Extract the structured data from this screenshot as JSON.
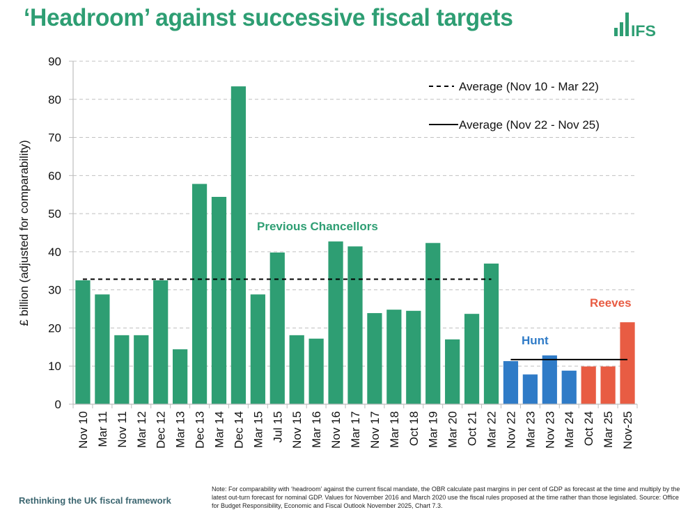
{
  "header": {
    "title": "‘Headroom’ against successive fiscal targets",
    "logo_text": "IFS"
  },
  "colors": {
    "previous": "#2e9e73",
    "hunt": "#2f7bc7",
    "reeves": "#e85c43",
    "title": "#2e9e73",
    "grid": "#c0c0c0"
  },
  "chart_data": {
    "type": "bar",
    "title": "‘Headroom’ against successive fiscal targets",
    "xlabel": "",
    "ylabel": "£ billion (adjusted for comparability)",
    "ylim": [
      0,
      90
    ],
    "yticks": [
      0,
      10,
      20,
      30,
      40,
      50,
      60,
      70,
      80,
      90
    ],
    "grid": true,
    "categories": [
      "Nov 10",
      "Mar 11",
      "Nov 11",
      "Mar 12",
      "Dec 12",
      "Mar 13",
      "Dec 13",
      "Mar 14",
      "Dec 14",
      "Mar 15",
      "Jul 15",
      "Nov 15",
      "Mar 16",
      "Nov 16",
      "Mar 17",
      "Nov 17",
      "Mar 18",
      "Oct 18",
      "Mar 19",
      "Mar 20",
      "Oct 21",
      "Mar 22",
      "Nov 22",
      "Mar 23",
      "Nov 23",
      "Mar 24",
      "Oct 24",
      "Mar 25",
      "Nov-25"
    ],
    "values": [
      32.5,
      28.8,
      18.1,
      18.1,
      32.5,
      14.4,
      57.8,
      54.4,
      83.4,
      28.8,
      39.8,
      18.1,
      17.2,
      42.7,
      41.4,
      23.9,
      24.8,
      24.5,
      42.3,
      17.0,
      23.7,
      36.9,
      11.3,
      7.8,
      12.8,
      8.8,
      9.9,
      9.9,
      21.5
    ],
    "groups": [
      "previous",
      "previous",
      "previous",
      "previous",
      "previous",
      "previous",
      "previous",
      "previous",
      "previous",
      "previous",
      "previous",
      "previous",
      "previous",
      "previous",
      "previous",
      "previous",
      "previous",
      "previous",
      "previous",
      "previous",
      "previous",
      "previous",
      "hunt",
      "hunt",
      "hunt",
      "hunt",
      "reeves",
      "reeves",
      "reeves"
    ],
    "annotations": [
      {
        "text": "Previous Chancellors",
        "group": "previous"
      },
      {
        "text": "Hunt",
        "group": "hunt"
      },
      {
        "text": "Reeves",
        "group": "reeves"
      }
    ],
    "averages": [
      {
        "label": "Average (Nov 10 - Mar 22)",
        "value": 32.8,
        "style": "dashed",
        "from": "Nov 10",
        "to": "Mar 22"
      },
      {
        "label": "Average (Nov 22 - Nov 25)",
        "value": 11.7,
        "style": "solid",
        "from": "Nov 22",
        "to": "Nov-25"
      }
    ],
    "legend": "top-right"
  },
  "footer": {
    "left": "Rethinking the UK fiscal framework",
    "note": "Note: For comparability with ‘headroom’ against the current fiscal mandate, the OBR calculate past margins in per cent of GDP as forecast at the time and multiply by the latest out-turn forecast for nominal GDP. Values for November 2016 and March 2020 use the fiscal rules proposed at the time rather than those legislated. Source: Office for Budget Responsibility, Economic and Fiscal Outlook November 2025, Chart 7.3."
  }
}
